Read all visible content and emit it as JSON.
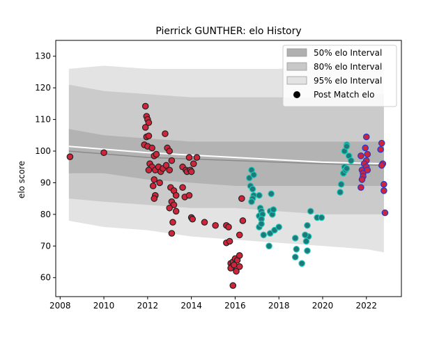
{
  "chart_data": {
    "type": "scatter",
    "title": "Pierrick GUNTHER: elo History",
    "xlabel": "",
    "ylabel": "elo score",
    "xlim": [
      2007.8,
      2023.6
    ],
    "ylim": [
      54,
      135
    ],
    "x_ticks": [
      "2008",
      "2010",
      "2012",
      "2014",
      "2016",
      "2018",
      "2020",
      "2022"
    ],
    "y_ticks": [
      "60",
      "70",
      "80",
      "90",
      "100",
      "110",
      "120",
      "130"
    ],
    "legend": {
      "position": "top-right",
      "entries": [
        {
          "label": "50% elo Interval",
          "color": "#b0b0b0"
        },
        {
          "label": "80% elo Interval",
          "color": "#c8c8c8"
        },
        {
          "label": "95% elo Interval",
          "color": "#e3e3e3"
        },
        {
          "label": "Post Match elo",
          "color": "#000000"
        }
      ]
    },
    "bands": {
      "x": [
        2008.4,
        2010,
        2012,
        2014,
        2016,
        2018,
        2020,
        2022,
        2022.8
      ],
      "p50_upper": [
        107,
        105,
        104,
        103,
        103,
        103,
        103,
        103,
        103
      ],
      "p50_lower": [
        93,
        93,
        91,
        90,
        89,
        89,
        89,
        89,
        89
      ],
      "p80_upper": [
        121,
        119,
        118,
        117,
        117,
        117,
        117,
        118,
        118
      ],
      "p80_lower": [
        85,
        84,
        83,
        82,
        82,
        81,
        80,
        80,
        80
      ],
      "p95_upper": [
        126,
        127,
        126,
        126,
        126,
        126,
        127,
        128,
        127
      ],
      "p95_lower": [
        78,
        76,
        75,
        73,
        72,
        71,
        70,
        69,
        68
      ]
    },
    "trend_lines": [
      {
        "x": [
          2008.4,
          2012,
          2016,
          2020,
          2022.8
        ],
        "y": [
          101.5,
          99.5,
          98,
          96.5,
          96
        ]
      },
      {
        "x": [
          2008.4,
          2012,
          2016,
          2020,
          2022.8
        ],
        "y": [
          100,
          98,
          97,
          96,
          95.5
        ]
      }
    ],
    "series": [
      {
        "color": "#d0243a",
        "edge": "#222222",
        "points": [
          [
            2008.45,
            98.2
          ],
          [
            2010,
            99.5
          ],
          [
            2011.9,
            114.2
          ],
          [
            2011.95,
            111
          ],
          [
            2012.0,
            110
          ],
          [
            2012.05,
            109
          ],
          [
            2011.9,
            107.5
          ],
          [
            2011.95,
            104.5
          ],
          [
            2012.05,
            104.8
          ],
          [
            2011.85,
            102
          ],
          [
            2012.0,
            101.5
          ],
          [
            2012.2,
            101
          ],
          [
            2012.3,
            98.5
          ],
          [
            2012.4,
            99
          ],
          [
            2012.1,
            96
          ],
          [
            2012.2,
            95
          ],
          [
            2012.35,
            94
          ],
          [
            2012.5,
            95
          ],
          [
            2012.6,
            93.5
          ],
          [
            2012.7,
            94.5
          ],
          [
            2012.85,
            95.5
          ],
          [
            2013.0,
            94
          ],
          [
            2012.05,
            94
          ],
          [
            2012.3,
            91
          ],
          [
            2012.55,
            90
          ],
          [
            2012.25,
            89
          ],
          [
            2012.35,
            86
          ],
          [
            2012.3,
            85
          ],
          [
            2012.8,
            105.5
          ],
          [
            2012.9,
            101
          ],
          [
            2013.0,
            100
          ],
          [
            2013.1,
            97
          ],
          [
            2013.05,
            88.5
          ],
          [
            2013.2,
            87.5
          ],
          [
            2013.3,
            86
          ],
          [
            2013.1,
            84
          ],
          [
            2013.2,
            83
          ],
          [
            2013.0,
            82
          ],
          [
            2013.3,
            81
          ],
          [
            2013.15,
            77.5
          ],
          [
            2013.1,
            74
          ],
          [
            2013.6,
            95
          ],
          [
            2013.75,
            94
          ],
          [
            2013.8,
            93.5
          ],
          [
            2013.9,
            98
          ],
          [
            2013.95,
            94
          ],
          [
            2014.0,
            93.5
          ],
          [
            2014.1,
            96
          ],
          [
            2014.25,
            98
          ],
          [
            2013.6,
            88.5
          ],
          [
            2013.7,
            85.5
          ],
          [
            2013.9,
            86
          ],
          [
            2014.0,
            79
          ],
          [
            2014.05,
            78.5
          ],
          [
            2014.6,
            77.5
          ],
          [
            2015.1,
            76.5
          ],
          [
            2015.6,
            76.5
          ],
          [
            2015.7,
            76
          ],
          [
            2015.6,
            71
          ],
          [
            2015.75,
            71.5
          ],
          [
            2016.3,
            85
          ],
          [
            2016.35,
            78
          ],
          [
            2016.2,
            73.5
          ],
          [
            2015.8,
            64.5
          ],
          [
            2015.85,
            63.5
          ],
          [
            2015.9,
            65
          ],
          [
            2015.8,
            63
          ],
          [
            2016.0,
            66
          ],
          [
            2016.1,
            65.5
          ],
          [
            2016.2,
            67
          ],
          [
            2015.95,
            64
          ],
          [
            2016.05,
            62
          ],
          [
            2016.2,
            63.5
          ],
          [
            2015.9,
            57.5
          ]
        ]
      },
      {
        "color": "#1e7a7a",
        "edge": "#1ec8b8",
        "points": [
          [
            2016.65,
            91.5
          ],
          [
            2016.75,
            94
          ],
          [
            2016.85,
            92.5
          ],
          [
            2016.7,
            89
          ],
          [
            2016.8,
            88
          ],
          [
            2016.85,
            86
          ],
          [
            2016.8,
            85
          ],
          [
            2016.75,
            84
          ],
          [
            2017.1,
            86
          ],
          [
            2017.15,
            82
          ],
          [
            2017.2,
            81
          ],
          [
            2017.1,
            79.5
          ],
          [
            2017.25,
            80
          ],
          [
            2017.2,
            78.5
          ],
          [
            2017.1,
            76
          ],
          [
            2017.2,
            77
          ],
          [
            2017.3,
            73.5
          ],
          [
            2017.6,
            81
          ],
          [
            2017.7,
            80
          ],
          [
            2017.75,
            81.5
          ],
          [
            2017.65,
            86.5
          ],
          [
            2017.6,
            74
          ],
          [
            2017.8,
            75
          ],
          [
            2018.0,
            76
          ],
          [
            2017.55,
            70
          ],
          [
            2018.75,
            72.5
          ],
          [
            2018.8,
            69
          ],
          [
            2018.75,
            66.5
          ],
          [
            2019.05,
            64.5
          ],
          [
            2019.3,
            76.5
          ],
          [
            2019.35,
            73
          ],
          [
            2019.2,
            73.5
          ],
          [
            2019.25,
            71.5
          ],
          [
            2019.3,
            68.5
          ],
          [
            2019.45,
            81
          ],
          [
            2019.75,
            79
          ],
          [
            2019.95,
            79
          ],
          [
            2020.85,
            89.5
          ],
          [
            2020.8,
            87
          ],
          [
            2021.0,
            95
          ],
          [
            2020.95,
            93
          ],
          [
            2021.05,
            94
          ],
          [
            2021.1,
            94.5
          ],
          [
            2021.0,
            100
          ],
          [
            2021.1,
            102
          ],
          [
            2021.1,
            101.5
          ],
          [
            2021.2,
            98.5
          ],
          [
            2021.3,
            97
          ]
        ]
      },
      {
        "color": "#d0243a",
        "edge": "#1a3ad8",
        "points": [
          [
            2021.75,
            98.5
          ],
          [
            2021.8,
            94
          ],
          [
            2021.85,
            93
          ],
          [
            2021.85,
            92
          ],
          [
            2021.8,
            91
          ],
          [
            2021.75,
            88.5
          ],
          [
            2022.0,
            104.5
          ],
          [
            2021.95,
            101
          ],
          [
            2022.0,
            97
          ],
          [
            2022.05,
            99
          ],
          [
            2021.9,
            96
          ],
          [
            2022.0,
            95
          ],
          [
            2022.05,
            94
          ],
          [
            2022.7,
            102.5
          ],
          [
            2022.65,
            100.5
          ],
          [
            2022.75,
            96
          ],
          [
            2022.7,
            95.5
          ],
          [
            2022.8,
            89.5
          ],
          [
            2022.8,
            87.5
          ],
          [
            2022.85,
            80.5
          ]
        ]
      }
    ]
  }
}
